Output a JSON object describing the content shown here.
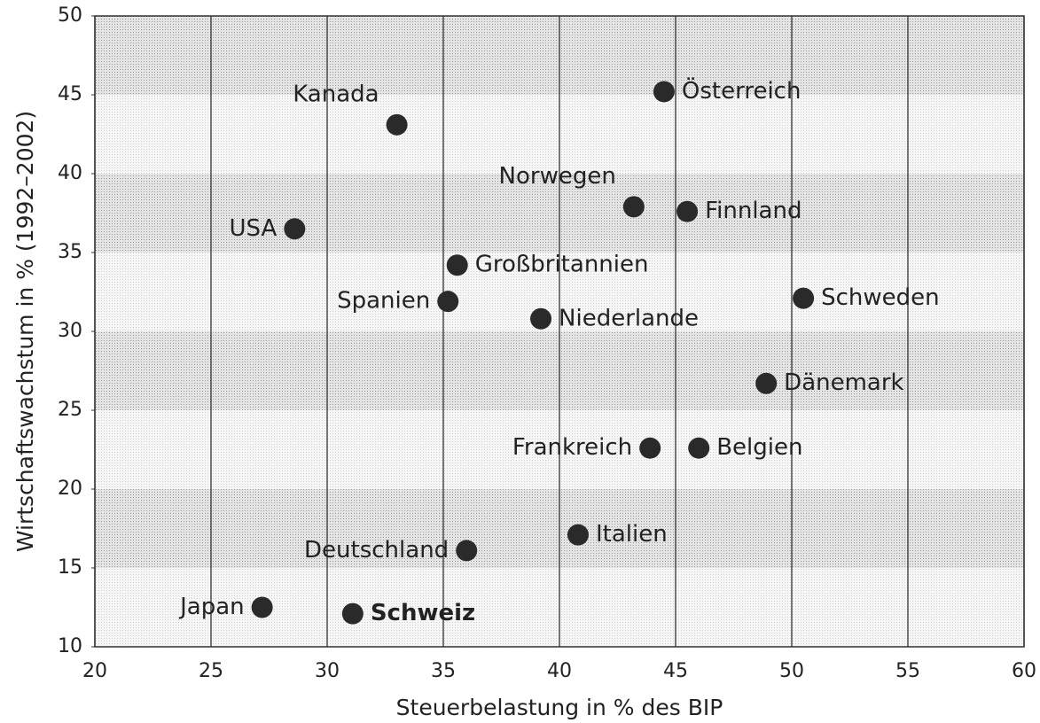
{
  "chart_data": {
    "type": "scatter",
    "xlabel": "Steuerbelastung in % des BIP",
    "ylabel": "Wirtschaftswachstum in % (1992–2002)",
    "labels": [
      "Österreich",
      "Kanada",
      "Norwegen",
      "Finnland",
      "USA",
      "Großbritannien",
      "Spanien",
      "Niederlande",
      "Schweden",
      "Dänemark",
      "Frankreich",
      "Belgien",
      "Italien",
      "Deutschland",
      "Japan",
      "Schweiz"
    ],
    "x": [
      44.5,
      33.0,
      43.2,
      45.5,
      28.6,
      35.6,
      35.2,
      39.2,
      50.5,
      48.9,
      43.9,
      46.0,
      40.8,
      36.0,
      27.2,
      31.1
    ],
    "values": [
      45.2,
      43.1,
      37.9,
      37.6,
      36.5,
      34.2,
      31.9,
      30.8,
      32.1,
      26.7,
      22.6,
      22.6,
      17.1,
      16.1,
      12.5,
      12.1
    ],
    "color": "#2a2a2a",
    "xlim": [
      20,
      60
    ],
    "ylim": [
      10,
      50
    ],
    "xticks": [
      20,
      25,
      30,
      35,
      40,
      45,
      50,
      55,
      60
    ],
    "yticks": [
      10,
      15,
      20,
      25,
      30,
      35,
      40,
      45,
      50
    ],
    "grid": true
  }
}
